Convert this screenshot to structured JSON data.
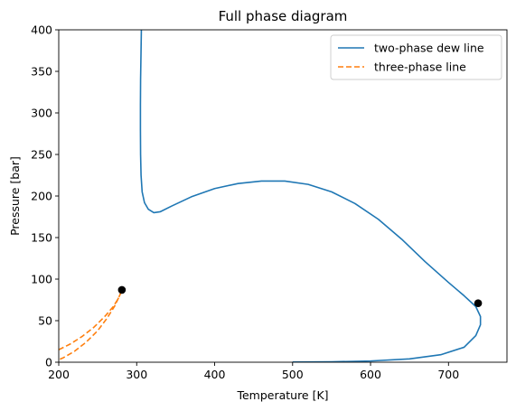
{
  "chart_data": {
    "type": "line",
    "title": "Full phase diagram",
    "xlabel": "Temperature [K]",
    "ylabel": "Pressure [bar]",
    "xlim": [
      200,
      775
    ],
    "ylim": [
      0,
      400
    ],
    "xticks": [
      200,
      300,
      400,
      500,
      600,
      700
    ],
    "yticks": [
      0,
      50,
      100,
      150,
      200,
      250,
      300,
      350,
      400
    ],
    "grid": false,
    "legend_position": "top-right",
    "series": [
      {
        "name": "two-phase dew line",
        "style": "solid",
        "color": "#1f77b4",
        "points": [
          [
            306,
            400
          ],
          [
            305.5,
            370
          ],
          [
            305,
            340
          ],
          [
            304.8,
            310
          ],
          [
            304.8,
            280
          ],
          [
            305,
            250
          ],
          [
            305.6,
            225
          ],
          [
            307,
            205
          ],
          [
            310,
            192
          ],
          [
            315,
            184
          ],
          [
            322,
            180
          ],
          [
            330,
            181
          ],
          [
            345,
            188
          ],
          [
            370,
            199
          ],
          [
            400,
            209
          ],
          [
            430,
            215
          ],
          [
            460,
            218
          ],
          [
            490,
            218
          ],
          [
            520,
            214
          ],
          [
            550,
            205
          ],
          [
            580,
            191
          ],
          [
            610,
            172
          ],
          [
            640,
            148
          ],
          [
            670,
            121
          ],
          [
            700,
            96
          ],
          [
            720,
            80
          ],
          [
            735,
            67
          ],
          [
            741,
            55
          ],
          [
            741,
            45
          ],
          [
            735,
            32
          ],
          [
            720,
            18
          ],
          [
            690,
            9
          ],
          [
            650,
            4
          ],
          [
            600,
            1.5
          ],
          [
            550,
            0.5
          ],
          [
            500,
            0.2
          ]
        ]
      },
      {
        "name": "three-phase line",
        "style": "dashed",
        "color": "#ff7f0e",
        "points": [
          [
            200,
            15
          ],
          [
            215,
            22
          ],
          [
            230,
            31
          ],
          [
            245,
            42
          ],
          [
            260,
            56
          ],
          [
            270,
            67
          ],
          [
            276,
            76
          ],
          [
            280,
            84
          ],
          [
            281,
            87
          ],
          [
            278,
            80
          ],
          [
            272,
            68
          ],
          [
            262,
            53
          ],
          [
            250,
            38
          ],
          [
            235,
            24
          ],
          [
            220,
            13
          ],
          [
            205,
            5
          ],
          [
            200,
            3
          ]
        ]
      }
    ],
    "markers": [
      {
        "x": 281,
        "y": 87,
        "color": "#000000"
      },
      {
        "x": 738,
        "y": 71,
        "color": "#000000"
      }
    ]
  }
}
